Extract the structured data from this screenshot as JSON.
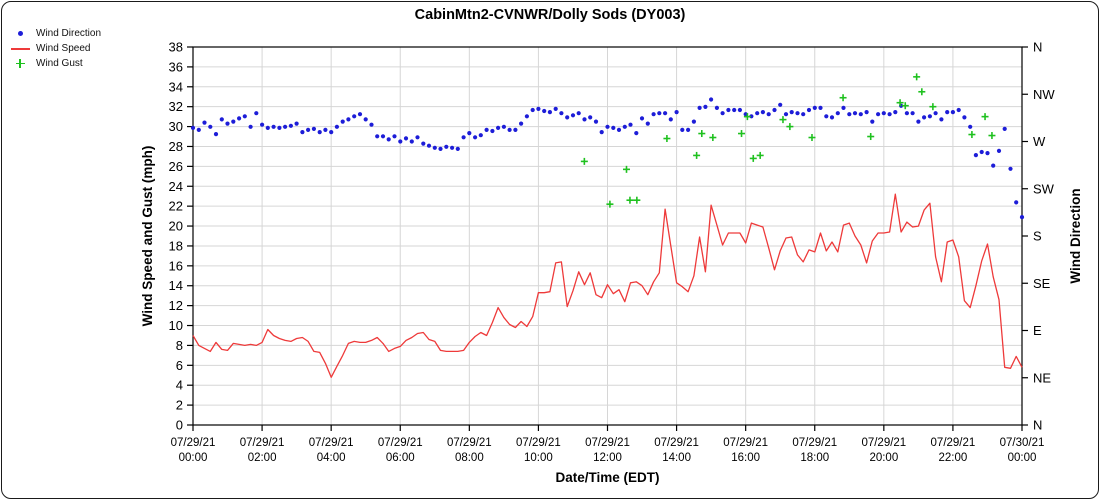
{
  "chart_data": {
    "type": "line",
    "title": "CabinMtn2-CVNWR/Dolly Sods (DY003)",
    "xlabel": "Date/Time (EDT)",
    "grid": {
      "color": "#d6d6d6",
      "on": true
    },
    "sampling_interval_minutes": 10,
    "left_axis": {
      "label": "Wind Speed and Gust (mph)",
      "range": [
        0,
        38
      ],
      "tick_step": 2
    },
    "right_axis": {
      "label": "Wind Direction",
      "range_deg": [
        0,
        360
      ],
      "ticks": [
        {
          "deg": 0,
          "label": "N"
        },
        {
          "deg": 45,
          "label": "NE"
        },
        {
          "deg": 90,
          "label": "E"
        },
        {
          "deg": 135,
          "label": "SE"
        },
        {
          "deg": 180,
          "label": "S"
        },
        {
          "deg": 225,
          "label": "SW"
        },
        {
          "deg": 270,
          "label": "W"
        },
        {
          "deg": 315,
          "label": "NW"
        },
        {
          "deg": 360,
          "label": "N"
        }
      ]
    },
    "x_axis": {
      "range_hours": [
        0,
        24
      ],
      "tick_step_hours": 2,
      "ticks": [
        {
          "date": "07/29/21",
          "time": "00:00"
        },
        {
          "date": "07/29/21",
          "time": "02:00"
        },
        {
          "date": "07/29/21",
          "time": "04:00"
        },
        {
          "date": "07/29/21",
          "time": "06:00"
        },
        {
          "date": "07/29/21",
          "time": "08:00"
        },
        {
          "date": "07/29/21",
          "time": "10:00"
        },
        {
          "date": "07/29/21",
          "time": "12:00"
        },
        {
          "date": "07/29/21",
          "time": "14:00"
        },
        {
          "date": "07/29/21",
          "time": "16:00"
        },
        {
          "date": "07/29/21",
          "time": "18:00"
        },
        {
          "date": "07/29/21",
          "time": "20:00"
        },
        {
          "date": "07/29/21",
          "time": "22:00"
        },
        {
          "date": "07/30/21",
          "time": "00:00"
        }
      ]
    },
    "series": [
      {
        "name": "Wind Direction",
        "axis": "right",
        "marker": "dot",
        "color": "#1d1dd8",
        "unit": "degrees",
        "x_start_hours": 0,
        "x_step_hours": 0.1666667,
        "values": [
          283,
          281,
          288,
          284,
          277,
          291,
          287,
          289,
          292,
          294,
          284,
          297,
          286,
          283,
          284,
          283,
          284,
          285,
          287,
          279,
          281,
          282,
          279,
          281,
          279,
          284,
          289,
          291,
          294,
          296,
          291,
          286,
          275,
          275,
          272,
          275,
          270,
          273,
          270,
          274,
          268,
          266,
          264,
          263,
          265,
          264,
          263,
          274,
          278,
          274,
          276,
          281,
          280,
          283,
          284,
          281,
          281,
          287,
          294,
          300,
          301,
          299,
          298,
          301,
          297,
          293,
          295,
          297,
          291,
          293,
          289,
          279,
          284,
          283,
          281,
          284,
          286,
          278,
          292,
          287,
          296,
          297,
          297,
          291,
          298,
          281,
          281,
          289,
          302,
          303,
          310,
          302,
          297,
          300,
          300,
          300,
          296,
          294,
          297,
          298,
          296,
          300,
          305,
          296,
          298,
          297,
          296,
          300,
          302,
          302,
          294,
          293,
          297,
          302,
          296,
          297,
          296,
          298,
          289,
          296,
          297,
          296,
          298,
          304,
          297,
          297,
          289,
          293,
          294,
          297,
          291,
          298,
          298,
          300,
          293,
          284,
          257,
          260,
          259,
          247,
          261,
          282,
          244,
          212,
          198
        ]
      },
      {
        "name": "Wind Speed",
        "axis": "left",
        "marker": "line",
        "color": "#ee3a3a",
        "unit": "mph",
        "x_start_hours": 0,
        "x_step_hours": 0.1666667,
        "values": [
          9.0,
          8.0,
          7.7,
          7.4,
          8.3,
          7.6,
          7.5,
          8.2,
          8.1,
          8.0,
          8.1,
          8.0,
          8.3,
          9.6,
          9.0,
          8.7,
          8.5,
          8.4,
          8.7,
          8.8,
          8.4,
          7.4,
          7.3,
          6.2,
          4.8,
          5.9,
          7.0,
          8.2,
          8.4,
          8.3,
          8.3,
          8.5,
          8.8,
          8.2,
          7.4,
          7.7,
          7.9,
          8.5,
          8.8,
          9.2,
          9.3,
          8.6,
          8.4,
          7.5,
          7.4,
          7.4,
          7.4,
          7.5,
          8.3,
          8.9,
          9.3,
          9.0,
          10.3,
          11.8,
          10.8,
          10.1,
          9.8,
          10.4,
          9.9,
          10.9,
          13.3,
          13.3,
          13.4,
          16.3,
          16.4,
          11.9,
          13.5,
          15.4,
          14.1,
          15.3,
          13.1,
          12.8,
          14.1,
          13.2,
          13.6,
          12.4,
          14.3,
          14.4,
          14.0,
          13.1,
          14.4,
          15.3,
          21.7,
          18.0,
          14.3,
          13.9,
          13.4,
          15.0,
          18.9,
          15.4,
          22.1,
          20.1,
          18.1,
          19.3,
          19.3,
          19.3,
          18.3,
          20.3,
          20.1,
          19.9,
          17.8,
          15.6,
          17.5,
          18.8,
          18.9,
          17.1,
          16.4,
          17.6,
          17.4,
          19.3,
          17.5,
          18.4,
          17.4,
          20.1,
          20.3,
          19.0,
          18.1,
          16.3,
          18.5,
          19.3,
          19.3,
          19.4,
          23.2,
          19.4,
          20.4,
          19.9,
          20.0,
          21.6,
          22.3,
          16.9,
          14.4,
          18.4,
          18.6,
          16.9,
          12.5,
          11.8,
          14.0,
          16.5,
          18.2,
          14.9,
          12.6,
          5.8,
          5.7,
          6.9,
          5.8
        ]
      },
      {
        "name": "Wind Gust",
        "axis": "left",
        "marker": "plus",
        "color": "#1fc11f",
        "unit": "mph",
        "points": [
          [
            11.33,
            26.5
          ],
          [
            12.07,
            22.2
          ],
          [
            12.55,
            25.7
          ],
          [
            12.65,
            22.6
          ],
          [
            12.85,
            22.6
          ],
          [
            13.72,
            28.8
          ],
          [
            14.58,
            27.1
          ],
          [
            14.73,
            29.3
          ],
          [
            15.05,
            28.9
          ],
          [
            15.88,
            29.3
          ],
          [
            16.05,
            31.0
          ],
          [
            16.22,
            26.8
          ],
          [
            16.42,
            27.1
          ],
          [
            17.08,
            30.7
          ],
          [
            17.28,
            30.0
          ],
          [
            17.92,
            28.9
          ],
          [
            18.82,
            32.9
          ],
          [
            19.62,
            29.0
          ],
          [
            20.47,
            32.4
          ],
          [
            20.62,
            32.1
          ],
          [
            20.95,
            35.0
          ],
          [
            21.1,
            33.5
          ],
          [
            21.42,
            32.0
          ],
          [
            22.55,
            29.2
          ],
          [
            22.93,
            31.0
          ],
          [
            23.13,
            29.1
          ]
        ]
      }
    ]
  }
}
